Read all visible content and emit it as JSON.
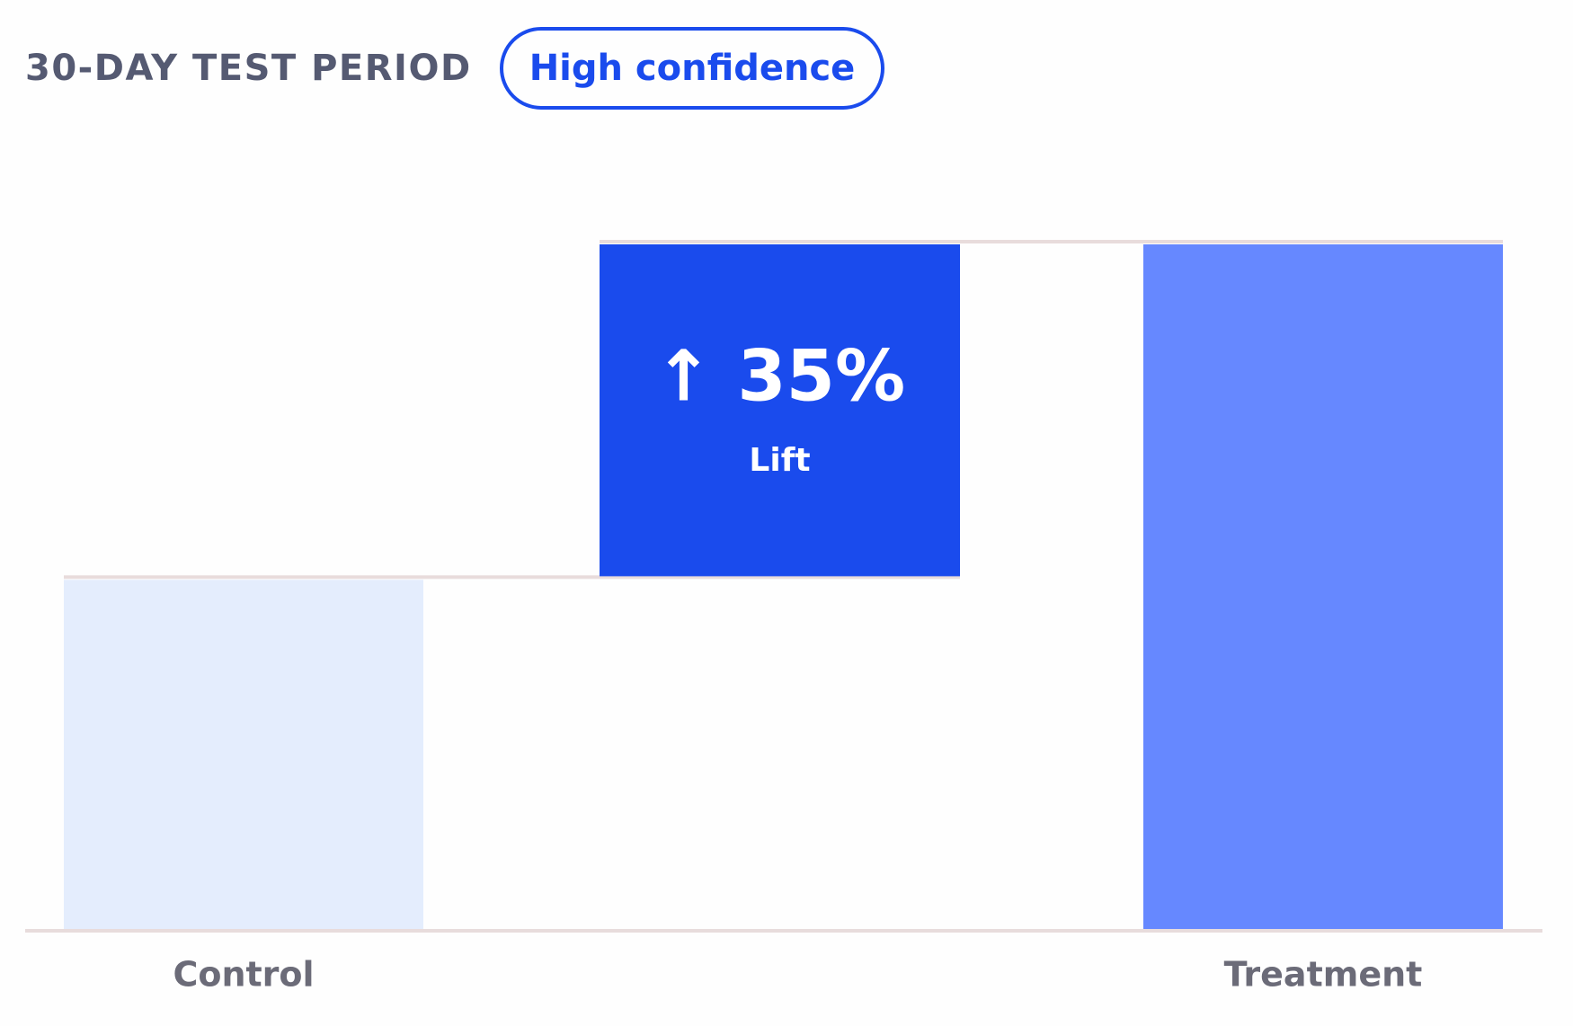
{
  "chart_data": {
    "type": "waterfall",
    "title": "30-DAY TEST PERIOD",
    "badge": "High confidence",
    "categories": [
      "Control",
      null,
      "Treatment"
    ],
    "measures": [
      "absolute",
      "relative",
      "total"
    ],
    "values": [
      51,
      49,
      100
    ],
    "colors": [
      "#e4edfd",
      "#1a4bed",
      "#6688ff"
    ],
    "annotations": [
      "↑ 35%",
      "Lift"
    ],
    "ylim": [
      0,
      100
    ]
  }
}
